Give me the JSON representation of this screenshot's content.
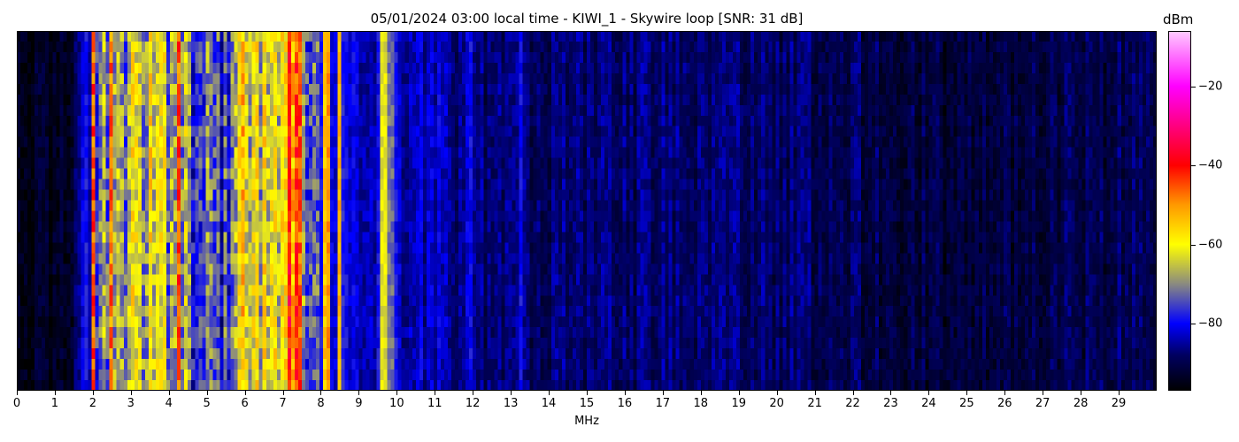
{
  "chart_data": {
    "type": "heatmap",
    "title": "05/01/2024 03:00 local time - KIWI_1 - Skywire loop [SNR: 31 dB]",
    "xlabel": "MHz",
    "ylabel": "",
    "xlim": [
      0,
      30
    ],
    "x_ticks": [
      "0",
      "1",
      "2",
      "3",
      "4",
      "5",
      "6",
      "7",
      "8",
      "9",
      "10",
      "11",
      "12",
      "13",
      "14",
      "15",
      "16",
      "17",
      "18",
      "19",
      "20",
      "21",
      "22",
      "23",
      "24",
      "25",
      "26",
      "27",
      "28",
      "29"
    ],
    "colorbar": {
      "label": "dBm",
      "range": [
        -97,
        -6
      ],
      "ticks": [
        "-20",
        "-40",
        "-60",
        "-80"
      ],
      "tick_values": [
        -20,
        -40,
        -60,
        -80
      ],
      "colormap": [
        {
          "v": -97,
          "c": "#000000"
        },
        {
          "v": -88,
          "c": "#000060"
        },
        {
          "v": -80,
          "c": "#0000ff"
        },
        {
          "v": -70,
          "c": "#8a8a80"
        },
        {
          "v": -60,
          "c": "#ffff00"
        },
        {
          "v": -50,
          "c": "#ff9900"
        },
        {
          "v": -40,
          "c": "#ff0000"
        },
        {
          "v": -20,
          "c": "#ff00ff"
        },
        {
          "v": -6,
          "c": "#ffccff"
        }
      ]
    },
    "grid": false,
    "profile_mhz": [
      0,
      0.5,
      1,
      1.4,
      1.6,
      2,
      2.2,
      2.4,
      2.6,
      3,
      3.5,
      4,
      4.2,
      4.5,
      5,
      5.5,
      5.8,
      6,
      6.5,
      7,
      7.3,
      7.6,
      8,
      8.5,
      9,
      9.5,
      9.8,
      10.2,
      11,
      12,
      14,
      16,
      18,
      20,
      22,
      23,
      25,
      27,
      28,
      30
    ],
    "profile_dbm": [
      -95,
      -95,
      -94,
      -93,
      -84,
      -80,
      -78,
      -68,
      -66,
      -66,
      -64,
      -66,
      -62,
      -72,
      -74,
      -80,
      -62,
      -60,
      -66,
      -66,
      -60,
      -72,
      -82,
      -80,
      -84,
      -82,
      -72,
      -84,
      -83,
      -88,
      -88,
      -88,
      -87,
      -88,
      -89,
      -91,
      -92,
      -91,
      -90,
      -89
    ],
    "lines": [
      {
        "mhz": 2.05,
        "dbm": -52
      },
      {
        "mhz": 2.5,
        "dbm": -50
      },
      {
        "mhz": 4.3,
        "dbm": -40
      },
      {
        "mhz": 4.25,
        "dbm": -42
      },
      {
        "mhz": 7.2,
        "dbm": -42
      },
      {
        "mhz": 7.35,
        "dbm": -44
      },
      {
        "mhz": 7.45,
        "dbm": -50
      },
      {
        "mhz": 8.15,
        "dbm": -52
      },
      {
        "mhz": 8.45,
        "dbm": -54
      },
      {
        "mhz": 9.6,
        "dbm": -62
      },
      {
        "mhz": 9.7,
        "dbm": -64
      },
      {
        "mhz": 11.9,
        "dbm": -82
      },
      {
        "mhz": 13.3,
        "dbm": -82
      },
      {
        "mhz": 18.0,
        "dbm": -84
      }
    ]
  }
}
